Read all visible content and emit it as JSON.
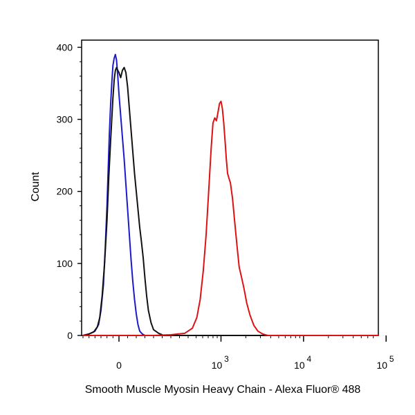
{
  "chart_data": {
    "type": "line",
    "xlabel": "Smooth Muscle Myosin Heavy Chain - Alexa Fluor® 488",
    "ylabel": "Count",
    "x_scale": "biexponential",
    "ylim": [
      0,
      410
    ],
    "y_ticks": [
      {
        "value": 0,
        "label": "0"
      },
      {
        "value": 100,
        "label": "100"
      },
      {
        "value": 200,
        "label": "200"
      },
      {
        "value": 300,
        "label": "300"
      },
      {
        "value": 400,
        "label": "400"
      }
    ],
    "x_ticks": [
      {
        "value": 0,
        "base": "0",
        "exp": ""
      },
      {
        "value": 1000,
        "base": "10",
        "exp": "3"
      },
      {
        "value": 10000,
        "base": "10",
        "exp": "4"
      },
      {
        "value": 100000,
        "base": "10",
        "exp": "5"
      }
    ],
    "grid": false,
    "series": [
      {
        "color": "#1a1acc",
        "points": [
          [
            -300,
            0
          ],
          [
            -250,
            2
          ],
          [
            -200,
            6
          ],
          [
            -170,
            15
          ],
          [
            -150,
            35
          ],
          [
            -130,
            70
          ],
          [
            -115,
            120
          ],
          [
            -100,
            180
          ],
          [
            -90,
            230
          ],
          [
            -80,
            280
          ],
          [
            -70,
            320
          ],
          [
            -60,
            350
          ],
          [
            -50,
            375
          ],
          [
            -40,
            385
          ],
          [
            -30,
            390
          ],
          [
            -20,
            382
          ],
          [
            -10,
            360
          ],
          [
            0,
            335
          ],
          [
            10,
            305
          ],
          [
            20,
            275
          ],
          [
            30,
            245
          ],
          [
            40,
            210
          ],
          [
            50,
            175
          ],
          [
            60,
            140
          ],
          [
            70,
            105
          ],
          [
            80,
            75
          ],
          [
            90,
            50
          ],
          [
            100,
            30
          ],
          [
            110,
            15
          ],
          [
            120,
            6
          ],
          [
            135,
            2
          ],
          [
            150,
            0
          ],
          [
            350000,
            0
          ]
        ]
      },
      {
        "color": "#111111",
        "points": [
          [
            -300,
            0
          ],
          [
            -250,
            2
          ],
          [
            -210,
            5
          ],
          [
            -180,
            12
          ],
          [
            -160,
            25
          ],
          [
            -140,
            55
          ],
          [
            -120,
            100
          ],
          [
            -100,
            160
          ],
          [
            -85,
            220
          ],
          [
            -70,
            270
          ],
          [
            -60,
            300
          ],
          [
            -50,
            330
          ],
          [
            -40,
            355
          ],
          [
            -30,
            368
          ],
          [
            -20,
            372
          ],
          [
            -10,
            368
          ],
          [
            0,
            365
          ],
          [
            10,
            358
          ],
          [
            20,
            368
          ],
          [
            30,
            372
          ],
          [
            40,
            365
          ],
          [
            50,
            345
          ],
          [
            60,
            315
          ],
          [
            70,
            285
          ],
          [
            80,
            255
          ],
          [
            90,
            225
          ],
          [
            100,
            200
          ],
          [
            110,
            175
          ],
          [
            120,
            150
          ],
          [
            130,
            130
          ],
          [
            140,
            108
          ],
          [
            150,
            80
          ],
          [
            160,
            55
          ],
          [
            170,
            35
          ],
          [
            185,
            18
          ],
          [
            200,
            8
          ],
          [
            230,
            3
          ],
          [
            260,
            0
          ],
          [
            350000,
            0
          ]
        ]
      },
      {
        "color": "#dd1111",
        "points": [
          [
            -300,
            0
          ],
          [
            200,
            0
          ],
          [
            300,
            1
          ],
          [
            380,
            3
          ],
          [
            450,
            10
          ],
          [
            510,
            25
          ],
          [
            560,
            50
          ],
          [
            610,
            90
          ],
          [
            660,
            140
          ],
          [
            710,
            200
          ],
          [
            760,
            260
          ],
          [
            800,
            295
          ],
          [
            840,
            302
          ],
          [
            880,
            298
          ],
          [
            920,
            310
          ],
          [
            960,
            322
          ],
          [
            1000,
            325
          ],
          [
            1040,
            315
          ],
          [
            1080,
            295
          ],
          [
            1120,
            270
          ],
          [
            1160,
            245
          ],
          [
            1200,
            225
          ],
          [
            1250,
            218
          ],
          [
            1300,
            212
          ],
          [
            1380,
            190
          ],
          [
            1460,
            160
          ],
          [
            1560,
            125
          ],
          [
            1660,
            95
          ],
          [
            1780,
            80
          ],
          [
            1900,
            65
          ],
          [
            2050,
            45
          ],
          [
            2250,
            28
          ],
          [
            2500,
            14
          ],
          [
            2800,
            6
          ],
          [
            3200,
            2
          ],
          [
            3700,
            0
          ],
          [
            350000,
            0
          ]
        ]
      }
    ]
  }
}
